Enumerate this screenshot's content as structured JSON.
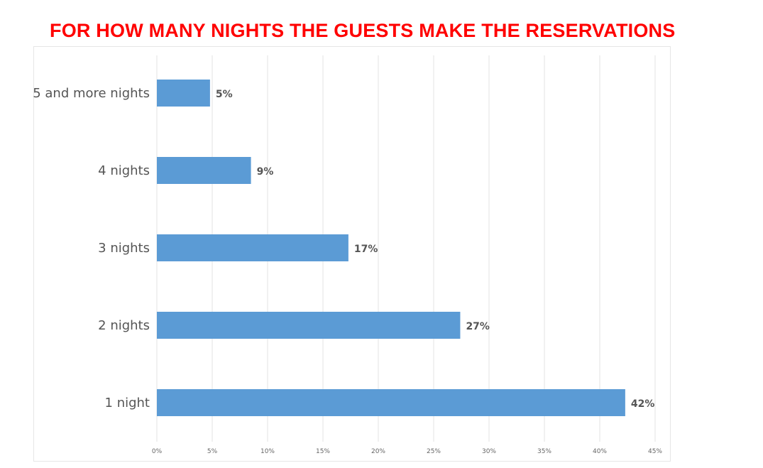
{
  "chart_data": {
    "type": "bar",
    "orientation": "horizontal",
    "title": "FOR HOW MANY NIGHTS THE GUESTS MAKE THE RESERVATIONS",
    "title_color": "#ff0000",
    "bar_color": "#5b9bd5",
    "grid_color": "#e3e3e3",
    "categories": [
      "5 and more nights",
      "4 nights",
      "3 nights",
      "2 nights",
      "1 night"
    ],
    "values": [
      4.8,
      8.5,
      17.3,
      27.4,
      42.3
    ],
    "data_labels": [
      "5%",
      "9%",
      "17%",
      "27%",
      "42%"
    ],
    "xlim": [
      0,
      45
    ],
    "x_ticks": [
      0,
      5,
      10,
      15,
      20,
      25,
      30,
      35,
      40,
      45
    ],
    "x_tick_labels": [
      "0%",
      "5%",
      "10%",
      "15%",
      "20%",
      "25%",
      "30%",
      "35%",
      "40%",
      "45%"
    ],
    "grid": true,
    "xlabel": "",
    "ylabel": ""
  }
}
